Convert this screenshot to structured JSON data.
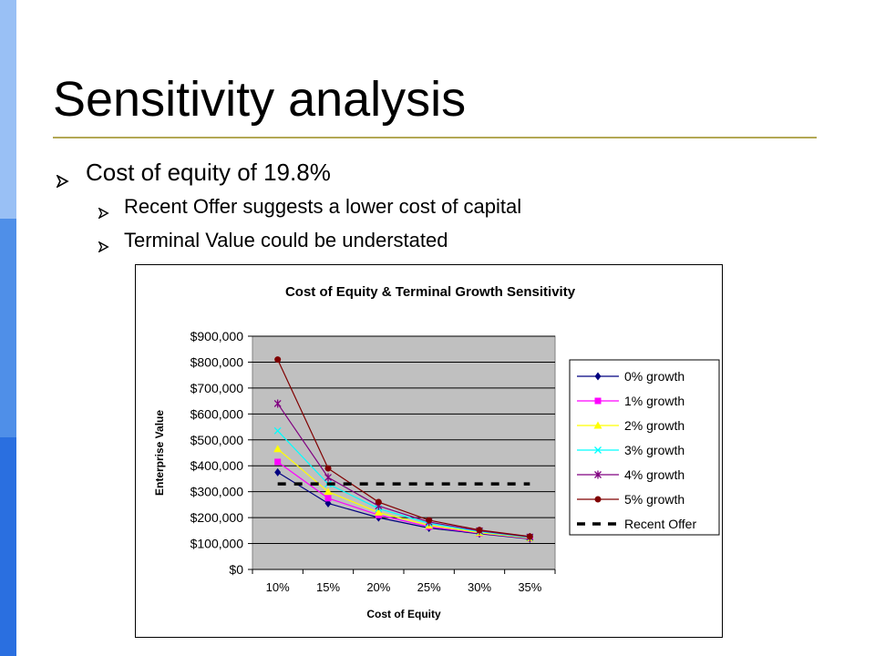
{
  "slide": {
    "title": "Sensitivity analysis",
    "bullets": [
      {
        "text": "Cost of equity of 19.8%"
      },
      {
        "text": "Recent Offer suggests a lower cost of capital"
      },
      {
        "text": "Terminal Value could be understated"
      }
    ],
    "accent_color": "#b3a855",
    "sidebar_colors": [
      "#99c0f5",
      "#4f8fe8",
      "#2a6fe0"
    ]
  },
  "chart_data": {
    "type": "line",
    "title": "Cost of Equity & Terminal Growth Sensitivity",
    "xlabel": "Cost of Equity",
    "ylabel": "Enterprise Value",
    "categories": [
      "10%",
      "15%",
      "20%",
      "25%",
      "30%",
      "35%"
    ],
    "yticks": [
      "$0",
      "$100,000",
      "$200,000",
      "$300,000",
      "$400,000",
      "$500,000",
      "$600,000",
      "$700,000",
      "$800,000",
      "$900,000"
    ],
    "ylim": [
      0,
      900000
    ],
    "grid": true,
    "plot_background": "#c0c0c0",
    "legend_position": "right",
    "series": [
      {
        "name": "0% growth",
        "color": "#000080",
        "marker": "diamond",
        "values": [
          375000,
          255000,
          200000,
          160000,
          138000,
          118000
        ]
      },
      {
        "name": "1% growth",
        "color": "#ff00ff",
        "marker": "square",
        "values": [
          415000,
          275000,
          210000,
          165000,
          140000,
          120000
        ]
      },
      {
        "name": "2% growth",
        "color": "#ffff00",
        "marker": "triangle",
        "values": [
          465000,
          300000,
          220000,
          170000,
          142000,
          121000
        ]
      },
      {
        "name": "3% growth",
        "color": "#00ffff",
        "marker": "x",
        "values": [
          535000,
          330000,
          235000,
          178000,
          146000,
          123000
        ]
      },
      {
        "name": "4% growth",
        "color": "#800080",
        "marker": "star",
        "values": [
          640000,
          355000,
          245000,
          183000,
          149000,
          125000
        ]
      },
      {
        "name": "5% growth",
        "color": "#800000",
        "marker": "circle",
        "values": [
          810000,
          390000,
          260000,
          190000,
          152000,
          127000
        ]
      },
      {
        "name": "Recent Offer",
        "color": "#000000",
        "marker": "none",
        "dashed": true,
        "values": [
          330000,
          330000,
          330000,
          330000,
          330000,
          330000
        ]
      }
    ]
  }
}
